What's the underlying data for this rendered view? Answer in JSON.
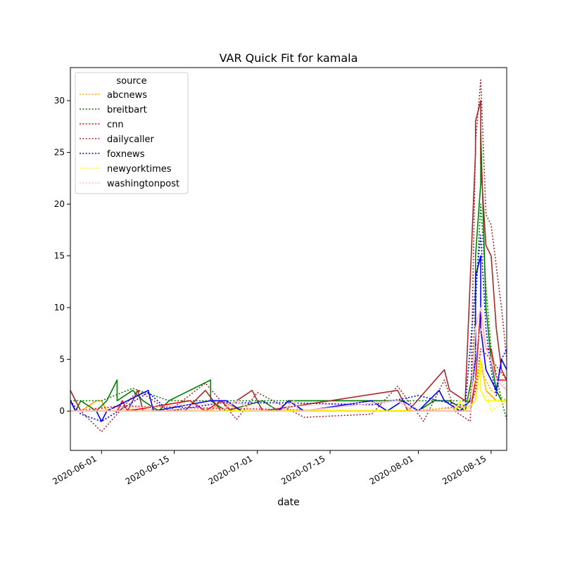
{
  "chart_data": {
    "type": "line",
    "title": "VAR Quick Fit for kamala",
    "xlabel": "date",
    "ylabel": "",
    "x_range": [
      "2020-05-26",
      "2020-08-18"
    ],
    "ylim": [
      -3.8,
      33.2
    ],
    "x_ticks": [
      "2020-06-01",
      "2020-06-15",
      "2020-07-01",
      "2020-07-15",
      "2020-08-01",
      "2020-08-15"
    ],
    "y_ticks": [
      0,
      5,
      10,
      15,
      20,
      25,
      30
    ],
    "grid": false,
    "legend": {
      "title": "source",
      "placement": "top-left"
    },
    "series": [
      {
        "name": "abcnews",
        "color": "#ffa500",
        "actual": [
          [
            "2020-05-26",
            0
          ],
          [
            "2020-05-28",
            0
          ],
          [
            "2020-05-31",
            1
          ],
          [
            "2020-06-01",
            1
          ],
          [
            "2020-06-02",
            0
          ],
          [
            "2020-06-22",
            0
          ],
          [
            "2020-06-24",
            1
          ],
          [
            "2020-06-28",
            0
          ],
          [
            "2020-07-05",
            0
          ],
          [
            "2020-07-20",
            0
          ],
          [
            "2020-08-01",
            0
          ],
          [
            "2020-08-10",
            0
          ],
          [
            "2020-08-12",
            1
          ],
          [
            "2020-08-13",
            5
          ],
          [
            "2020-08-14",
            2
          ],
          [
            "2020-08-16",
            1
          ],
          [
            "2020-08-18",
            1
          ]
        ],
        "fitted": [
          [
            "2020-05-26",
            0
          ],
          [
            "2020-06-01",
            0.2
          ],
          [
            "2020-06-20",
            0.1
          ],
          [
            "2020-07-10",
            0
          ],
          [
            "2020-07-31",
            0
          ],
          [
            "2020-08-10",
            0.5
          ],
          [
            "2020-08-12",
            2
          ],
          [
            "2020-08-13",
            4
          ],
          [
            "2020-08-15",
            2
          ],
          [
            "2020-08-18",
            1
          ]
        ]
      },
      {
        "name": "breitbart",
        "color": "#008000",
        "actual": [
          [
            "2020-05-26",
            1
          ],
          [
            "2020-05-27",
            0
          ],
          [
            "2020-05-28",
            1
          ],
          [
            "2020-05-31",
            0
          ],
          [
            "2020-06-02",
            1
          ],
          [
            "2020-06-04",
            3
          ],
          [
            "2020-06-04",
            1
          ],
          [
            "2020-06-07",
            2
          ],
          [
            "2020-06-09",
            1
          ],
          [
            "2020-06-12",
            0
          ],
          [
            "2020-06-14",
            1
          ],
          [
            "2020-06-22",
            3
          ],
          [
            "2020-06-22",
            1
          ],
          [
            "2020-06-25",
            0
          ],
          [
            "2020-07-02",
            1
          ],
          [
            "2020-07-05",
            0
          ],
          [
            "2020-07-07",
            1
          ],
          [
            "2020-07-23",
            1
          ],
          [
            "2020-07-29",
            1
          ],
          [
            "2020-08-01",
            0
          ],
          [
            "2020-08-04",
            1
          ],
          [
            "2020-08-07",
            1
          ],
          [
            "2020-08-10",
            0
          ],
          [
            "2020-08-12",
            5
          ],
          [
            "2020-08-12",
            15
          ],
          [
            "2020-08-13",
            22
          ],
          [
            "2020-08-13",
            27
          ],
          [
            "2020-08-14",
            10
          ],
          [
            "2020-08-15",
            5
          ],
          [
            "2020-08-16",
            2
          ],
          [
            "2020-08-17",
            1
          ],
          [
            "2020-08-18",
            1
          ]
        ],
        "fitted": [
          [
            "2020-05-26",
            1
          ],
          [
            "2020-06-01",
            1
          ],
          [
            "2020-06-07",
            2.2
          ],
          [
            "2020-06-14",
            1
          ],
          [
            "2020-06-22",
            1
          ],
          [
            "2020-07-01",
            1
          ],
          [
            "2020-07-20",
            1
          ],
          [
            "2020-07-31",
            1
          ],
          [
            "2020-08-05",
            1
          ],
          [
            "2020-08-11",
            1
          ],
          [
            "2020-08-12",
            10
          ],
          [
            "2020-08-13",
            20
          ],
          [
            "2020-08-14",
            12
          ],
          [
            "2020-08-15",
            6
          ],
          [
            "2020-08-17",
            1
          ],
          [
            "2020-08-18",
            -0.8
          ]
        ]
      },
      {
        "name": "cnn",
        "color": "#ff0000",
        "actual": [
          [
            "2020-05-26",
            0
          ],
          [
            "2020-06-04",
            0
          ],
          [
            "2020-06-05",
            1
          ],
          [
            "2020-06-06",
            0
          ],
          [
            "2020-06-18",
            1
          ],
          [
            "2020-06-21",
            0
          ],
          [
            "2020-06-24",
            1
          ],
          [
            "2020-06-26",
            0
          ],
          [
            "2020-07-20",
            0
          ],
          [
            "2020-08-01",
            0
          ],
          [
            "2020-08-11",
            0
          ],
          [
            "2020-08-12",
            3
          ],
          [
            "2020-08-13",
            10
          ],
          [
            "2020-08-14",
            6
          ],
          [
            "2020-08-15",
            6
          ],
          [
            "2020-08-16",
            3
          ],
          [
            "2020-08-18",
            3
          ]
        ],
        "fitted": [
          [
            "2020-05-26",
            0
          ],
          [
            "2020-06-05",
            0.5
          ],
          [
            "2020-06-20",
            0.3
          ],
          [
            "2020-07-20",
            0
          ],
          [
            "2020-08-01",
            0
          ],
          [
            "2020-08-11",
            0.5
          ],
          [
            "2020-08-12",
            2
          ],
          [
            "2020-08-13",
            6
          ],
          [
            "2020-08-15",
            5
          ],
          [
            "2020-08-18",
            3
          ]
        ]
      },
      {
        "name": "dailycaller",
        "color": "#a52a2a",
        "actual": [
          [
            "2020-05-26",
            2
          ],
          [
            "2020-05-27",
            1
          ],
          [
            "2020-05-28",
            0
          ],
          [
            "2020-06-06",
            0
          ],
          [
            "2020-06-08",
            2
          ],
          [
            "2020-06-09",
            0
          ],
          [
            "2020-06-17",
            0
          ],
          [
            "2020-06-19",
            1
          ],
          [
            "2020-06-21",
            2
          ],
          [
            "2020-06-24",
            0
          ],
          [
            "2020-06-27",
            1
          ],
          [
            "2020-06-30",
            2
          ],
          [
            "2020-07-02",
            0
          ],
          [
            "2020-07-28",
            2
          ],
          [
            "2020-07-29",
            1
          ],
          [
            "2020-07-30",
            0
          ],
          [
            "2020-08-06",
            4
          ],
          [
            "2020-08-07",
            2
          ],
          [
            "2020-08-10",
            1
          ],
          [
            "2020-08-12",
            25
          ],
          [
            "2020-08-12",
            28
          ],
          [
            "2020-08-13",
            30
          ],
          [
            "2020-08-13",
            24
          ],
          [
            "2020-08-14",
            16
          ],
          [
            "2020-08-15",
            15
          ],
          [
            "2020-08-16",
            8
          ],
          [
            "2020-08-17",
            4
          ],
          [
            "2020-08-18",
            3
          ]
        ],
        "fitted": [
          [
            "2020-05-26",
            2
          ],
          [
            "2020-05-28",
            0
          ],
          [
            "2020-06-01",
            -2
          ],
          [
            "2020-06-08",
            2
          ],
          [
            "2020-06-14",
            0
          ],
          [
            "2020-06-21",
            2.7
          ],
          [
            "2020-06-27",
            -0.8
          ],
          [
            "2020-07-01",
            1.8
          ],
          [
            "2020-07-10",
            -0.6
          ],
          [
            "2020-07-23",
            -0.3
          ],
          [
            "2020-07-28",
            2.4
          ],
          [
            "2020-08-02",
            -1
          ],
          [
            "2020-08-06",
            3
          ],
          [
            "2020-08-08",
            0
          ],
          [
            "2020-08-11",
            -1
          ],
          [
            "2020-08-12",
            26
          ],
          [
            "2020-08-13",
            32
          ],
          [
            "2020-08-14",
            19
          ],
          [
            "2020-08-15",
            18
          ],
          [
            "2020-08-16",
            14
          ],
          [
            "2020-08-17",
            10
          ],
          [
            "2020-08-18",
            5
          ]
        ]
      },
      {
        "name": "foxnews",
        "color": "#0000ff",
        "actual": [
          [
            "2020-05-26",
            1
          ],
          [
            "2020-05-27",
            0
          ],
          [
            "2020-05-31",
            0
          ],
          [
            "2020-06-01",
            -1
          ],
          [
            "2020-06-02",
            0
          ],
          [
            "2020-06-10",
            2
          ],
          [
            "2020-06-11",
            0
          ],
          [
            "2020-06-22",
            1
          ],
          [
            "2020-06-25",
            1
          ],
          [
            "2020-06-28",
            0
          ],
          [
            "2020-07-05",
            0
          ],
          [
            "2020-07-07",
            1
          ],
          [
            "2020-07-10",
            0
          ],
          [
            "2020-07-23",
            1
          ],
          [
            "2020-07-26",
            0
          ],
          [
            "2020-07-29",
            1
          ],
          [
            "2020-08-01",
            0
          ],
          [
            "2020-08-05",
            2
          ],
          [
            "2020-08-06",
            1
          ],
          [
            "2020-08-09",
            0
          ],
          [
            "2020-08-11",
            1
          ],
          [
            "2020-08-12",
            5
          ],
          [
            "2020-08-12",
            13
          ],
          [
            "2020-08-13",
            15
          ],
          [
            "2020-08-13",
            8
          ],
          [
            "2020-08-14",
            4
          ],
          [
            "2020-08-15",
            3
          ],
          [
            "2020-08-16",
            2
          ],
          [
            "2020-08-17",
            5
          ],
          [
            "2020-08-18",
            4
          ]
        ],
        "fitted": [
          [
            "2020-05-26",
            1
          ],
          [
            "2020-05-28",
            -0.3
          ],
          [
            "2020-06-01",
            -1
          ],
          [
            "2020-06-10",
            1.8
          ],
          [
            "2020-06-14",
            0
          ],
          [
            "2020-06-24",
            0.8
          ],
          [
            "2020-07-07",
            0.8
          ],
          [
            "2020-07-23",
            0.6
          ],
          [
            "2020-08-01",
            1.5
          ],
          [
            "2020-08-05",
            1
          ],
          [
            "2020-08-10",
            0.5
          ],
          [
            "2020-08-12",
            12
          ],
          [
            "2020-08-13",
            17
          ],
          [
            "2020-08-14",
            8
          ],
          [
            "2020-08-15",
            4
          ],
          [
            "2020-08-16",
            1.5
          ],
          [
            "2020-08-17",
            5
          ],
          [
            "2020-08-18",
            6
          ]
        ]
      },
      {
        "name": "newyorktimes",
        "color": "#ffff00",
        "actual": [
          [
            "2020-05-26",
            0
          ],
          [
            "2020-07-29",
            0
          ],
          [
            "2020-08-08",
            0
          ],
          [
            "2020-08-09",
            1
          ],
          [
            "2020-08-10",
            0
          ],
          [
            "2020-08-12",
            1
          ],
          [
            "2020-08-13",
            5
          ],
          [
            "2020-08-13",
            2
          ],
          [
            "2020-08-14",
            1
          ],
          [
            "2020-08-15",
            1
          ],
          [
            "2020-08-16",
            1
          ],
          [
            "2020-08-18",
            1
          ]
        ],
        "fitted": [
          [
            "2020-05-26",
            0
          ],
          [
            "2020-07-29",
            0.1
          ],
          [
            "2020-08-10",
            0.3
          ],
          [
            "2020-08-12",
            3
          ],
          [
            "2020-08-13",
            5
          ],
          [
            "2020-08-14",
            2
          ],
          [
            "2020-08-15",
            0
          ],
          [
            "2020-08-18",
            1
          ]
        ]
      },
      {
        "name": "washingtonpost",
        "color": "#ffc0cb",
        "actual": [
          [
            "2020-05-26",
            0
          ],
          [
            "2020-06-24",
            0
          ],
          [
            "2020-06-27",
            1
          ],
          [
            "2020-06-30",
            0
          ],
          [
            "2020-07-06",
            0
          ],
          [
            "2020-07-08",
            1
          ],
          [
            "2020-07-09",
            0
          ],
          [
            "2020-07-28",
            1
          ],
          [
            "2020-07-31",
            0
          ],
          [
            "2020-08-11",
            0
          ],
          [
            "2020-08-12",
            8
          ],
          [
            "2020-08-13",
            10
          ],
          [
            "2020-08-14",
            6
          ],
          [
            "2020-08-15",
            5
          ],
          [
            "2020-08-16",
            3
          ],
          [
            "2020-08-18",
            2
          ]
        ],
        "fitted": [
          [
            "2020-05-26",
            0
          ],
          [
            "2020-06-26",
            0.8
          ],
          [
            "2020-07-02",
            0.3
          ],
          [
            "2020-07-28",
            1
          ],
          [
            "2020-08-02",
            0
          ],
          [
            "2020-08-11",
            0.5
          ],
          [
            "2020-08-12",
            6
          ],
          [
            "2020-08-13",
            8
          ],
          [
            "2020-08-14",
            6
          ],
          [
            "2020-08-16",
            4
          ],
          [
            "2020-08-18",
            2
          ]
        ]
      }
    ]
  }
}
